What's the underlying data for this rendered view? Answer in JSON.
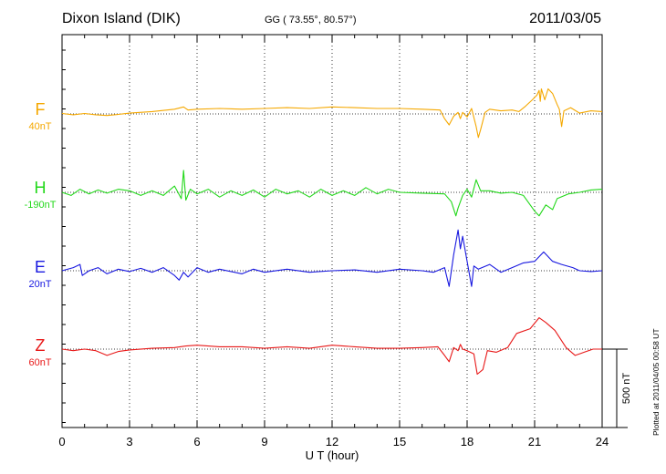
{
  "header": {
    "station": "Dixon Island (DIK)",
    "coords": "GG ( 73.55°,  80.57°)",
    "date": "2011/03/05"
  },
  "plotted_note": "Plotted at 2011/04/05 00:58 UT",
  "chart_data": {
    "type": "line",
    "xlabel": "U T (hour)",
    "xlim": [
      0,
      24
    ],
    "x_ticks": [
      0,
      3,
      6,
      9,
      12,
      15,
      18,
      21,
      24
    ],
    "scale_bar_label": "500 nT",
    "scale_bar_nT": 500,
    "grid": "dotted vertical every 3 h; dotted baseline per trace",
    "series": [
      {
        "name": "F",
        "offset_label": "40nT",
        "color": "#f5a800",
        "points": [
          [
            0,
            3
          ],
          [
            0.5,
            -5
          ],
          [
            1,
            3
          ],
          [
            1.5,
            -5
          ],
          [
            2,
            -10
          ],
          [
            2.5,
            -3
          ],
          [
            3,
            5
          ],
          [
            4,
            15
          ],
          [
            5,
            30
          ],
          [
            5.4,
            45
          ],
          [
            5.6,
            25
          ],
          [
            6,
            30
          ],
          [
            7,
            35
          ],
          [
            8,
            30
          ],
          [
            9,
            35
          ],
          [
            10,
            40
          ],
          [
            11,
            35
          ],
          [
            12,
            45
          ],
          [
            13,
            40
          ],
          [
            14,
            35
          ],
          [
            15,
            35
          ],
          [
            16,
            30
          ],
          [
            16.8,
            25
          ],
          [
            17.0,
            -30
          ],
          [
            17.2,
            -70
          ],
          [
            17.4,
            -15
          ],
          [
            17.6,
            10
          ],
          [
            17.7,
            -30
          ],
          [
            17.8,
            10
          ],
          [
            18.0,
            -20
          ],
          [
            18.2,
            35
          ],
          [
            18.4,
            -80
          ],
          [
            18.5,
            -150
          ],
          [
            18.6,
            -100
          ],
          [
            18.8,
            10
          ],
          [
            19.0,
            30
          ],
          [
            19.5,
            20
          ],
          [
            20,
            25
          ],
          [
            20.3,
            15
          ],
          [
            20.6,
            50
          ],
          [
            20.9,
            90
          ],
          [
            21.1,
            120
          ],
          [
            21.2,
            150
          ],
          [
            21.25,
            80
          ],
          [
            21.3,
            160
          ],
          [
            21.45,
            90
          ],
          [
            21.6,
            160
          ],
          [
            21.8,
            130
          ],
          [
            22.0,
            60
          ],
          [
            22.1,
            30
          ],
          [
            22.2,
            -80
          ],
          [
            22.3,
            20
          ],
          [
            22.6,
            40
          ],
          [
            23,
            5
          ],
          [
            23.5,
            20
          ],
          [
            24,
            15
          ]
        ]
      },
      {
        "name": "H",
        "offset_label": "-190nT",
        "color": "#22d81a",
        "points": [
          [
            0,
            0
          ],
          [
            0.4,
            -20
          ],
          [
            0.8,
            20
          ],
          [
            1.2,
            -10
          ],
          [
            1.6,
            15
          ],
          [
            2,
            -5
          ],
          [
            2.5,
            20
          ],
          [
            3,
            10
          ],
          [
            3.5,
            -20
          ],
          [
            4,
            10
          ],
          [
            4.5,
            -20
          ],
          [
            5,
            40
          ],
          [
            5.3,
            -40
          ],
          [
            5.4,
            140
          ],
          [
            5.5,
            -50
          ],
          [
            5.7,
            20
          ],
          [
            6,
            -10
          ],
          [
            6.5,
            20
          ],
          [
            7,
            -30
          ],
          [
            7.5,
            10
          ],
          [
            8,
            -20
          ],
          [
            8.5,
            15
          ],
          [
            9,
            -30
          ],
          [
            9.5,
            20
          ],
          [
            10,
            -10
          ],
          [
            10.5,
            10
          ],
          [
            11,
            -30
          ],
          [
            11.5,
            20
          ],
          [
            12,
            -20
          ],
          [
            12.5,
            10
          ],
          [
            13,
            -20
          ],
          [
            13.5,
            30
          ],
          [
            14,
            -10
          ],
          [
            14.5,
            20
          ],
          [
            15,
            0
          ],
          [
            16,
            -5
          ],
          [
            17,
            -10
          ],
          [
            17.3,
            -60
          ],
          [
            17.5,
            -150
          ],
          [
            17.6,
            -100
          ],
          [
            17.8,
            -20
          ],
          [
            18.0,
            20
          ],
          [
            18.2,
            -30
          ],
          [
            18.4,
            80
          ],
          [
            18.6,
            10
          ],
          [
            19,
            10
          ],
          [
            19.5,
            -5
          ],
          [
            20,
            0
          ],
          [
            20.5,
            -20
          ],
          [
            21,
            -120
          ],
          [
            21.2,
            -150
          ],
          [
            21.5,
            -80
          ],
          [
            21.8,
            -110
          ],
          [
            22,
            -40
          ],
          [
            22.5,
            -10
          ],
          [
            23,
            0
          ],
          [
            23.5,
            15
          ],
          [
            24,
            20
          ]
        ]
      },
      {
        "name": "E",
        "offset_label": "20nT",
        "color": "#1818e0",
        "points": [
          [
            0,
            0
          ],
          [
            0.5,
            20
          ],
          [
            0.8,
            40
          ],
          [
            0.9,
            -30
          ],
          [
            1.2,
            0
          ],
          [
            1.6,
            20
          ],
          [
            2,
            -20
          ],
          [
            2.5,
            10
          ],
          [
            3,
            -5
          ],
          [
            3.5,
            15
          ],
          [
            4,
            -10
          ],
          [
            4.5,
            20
          ],
          [
            5,
            -30
          ],
          [
            5.2,
            -60
          ],
          [
            5.4,
            -10
          ],
          [
            5.6,
            -40
          ],
          [
            6,
            20
          ],
          [
            6.5,
            -10
          ],
          [
            7,
            10
          ],
          [
            8,
            -20
          ],
          [
            8.5,
            10
          ],
          [
            9,
            -10
          ],
          [
            10,
            10
          ],
          [
            11,
            -10
          ],
          [
            12,
            0
          ],
          [
            13,
            5
          ],
          [
            14,
            -10
          ],
          [
            15,
            10
          ],
          [
            16,
            0
          ],
          [
            16.5,
            -10
          ],
          [
            17,
            20
          ],
          [
            17.2,
            -100
          ],
          [
            17.4,
            100
          ],
          [
            17.6,
            260
          ],
          [
            17.7,
            140
          ],
          [
            17.8,
            220
          ],
          [
            18.0,
            60
          ],
          [
            18.2,
            -100
          ],
          [
            18.3,
            30
          ],
          [
            18.5,
            10
          ],
          [
            19,
            40
          ],
          [
            19.5,
            -10
          ],
          [
            20,
            20
          ],
          [
            20.5,
            50
          ],
          [
            21,
            60
          ],
          [
            21.4,
            120
          ],
          [
            21.8,
            60
          ],
          [
            22.2,
            40
          ],
          [
            22.7,
            20
          ],
          [
            23,
            0
          ],
          [
            23.5,
            -5
          ],
          [
            24,
            0
          ]
        ]
      },
      {
        "name": "Z",
        "offset_label": "60nT",
        "color": "#e81818",
        "points": [
          [
            0,
            0
          ],
          [
            0.5,
            -10
          ],
          [
            1,
            0
          ],
          [
            1.5,
            -10
          ],
          [
            2,
            -40
          ],
          [
            2.5,
            -15
          ],
          [
            3,
            -5
          ],
          [
            4,
            5
          ],
          [
            5,
            10
          ],
          [
            5.5,
            20
          ],
          [
            6,
            25
          ],
          [
            7,
            15
          ],
          [
            8,
            15
          ],
          [
            9,
            5
          ],
          [
            10,
            15
          ],
          [
            11,
            5
          ],
          [
            12,
            25
          ],
          [
            13,
            15
          ],
          [
            14,
            5
          ],
          [
            15,
            5
          ],
          [
            16,
            10
          ],
          [
            16.7,
            15
          ],
          [
            17.0,
            -40
          ],
          [
            17.2,
            -80
          ],
          [
            17.4,
            10
          ],
          [
            17.6,
            -10
          ],
          [
            17.7,
            30
          ],
          [
            17.8,
            0
          ],
          [
            18.0,
            -10
          ],
          [
            18.3,
            -30
          ],
          [
            18.45,
            -160
          ],
          [
            18.7,
            -130
          ],
          [
            18.9,
            -10
          ],
          [
            19.3,
            -20
          ],
          [
            19.8,
            10
          ],
          [
            20.2,
            100
          ],
          [
            20.8,
            130
          ],
          [
            21.2,
            200
          ],
          [
            21.5,
            170
          ],
          [
            21.9,
            120
          ],
          [
            22.4,
            10
          ],
          [
            22.8,
            -40
          ],
          [
            23.2,
            -20
          ],
          [
            23.6,
            0
          ],
          [
            24,
            0
          ]
        ]
      }
    ]
  }
}
